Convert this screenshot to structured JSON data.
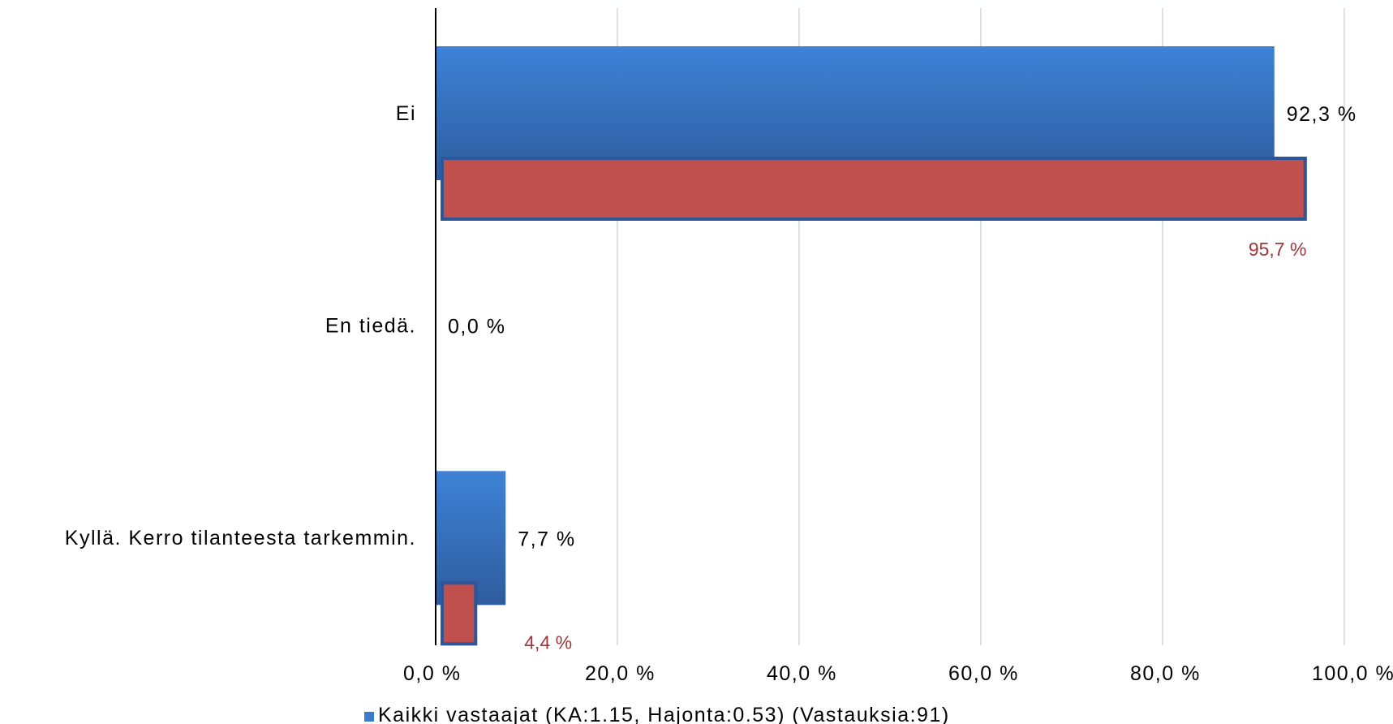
{
  "chart_data": {
    "type": "bar",
    "orientation": "horizontal",
    "categories": [
      "Ei",
      "En tiedä.",
      "Kyllä. Kerro tilanteesta tarkemmin."
    ],
    "series": [
      {
        "name": "Kaikki vastaajat (KA:1.15, Hajonta:0.53) (Vastauksia:91)",
        "values": [
          92.3,
          0.0,
          7.7
        ],
        "labels": [
          "92,3 %",
          "0,0 %",
          "7,7 %"
        ],
        "color": "#3B7BCD",
        "label_color": "#000000"
      },
      {
        "values": [
          95.7,
          0.0,
          4.4
        ],
        "labels": [
          "95,7 %",
          "",
          "4,4 %"
        ],
        "color": "#C0504D",
        "border_color": "#2E5597",
        "label_color": "#A0353A"
      }
    ],
    "xlim": [
      0,
      100
    ],
    "x_ticks": [
      0,
      20,
      40,
      60,
      80,
      100
    ],
    "x_tick_labels": [
      "0,0 %",
      "20,0 %",
      "40,0 %",
      "60,0 %",
      "80,0 %",
      "100,0 %"
    ],
    "grid": true,
    "grid_color": "#D5E3EF",
    "legend_position": "bottom",
    "title": "",
    "xlabel": "",
    "ylabel": ""
  }
}
